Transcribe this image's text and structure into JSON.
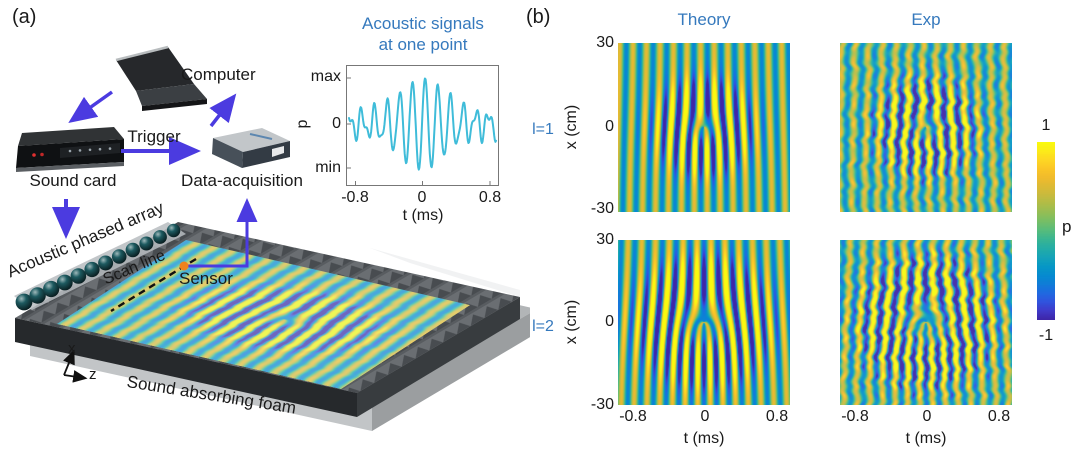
{
  "figure": {
    "panel_a_tag": "(a)",
    "panel_b_tag": "(b)"
  },
  "colors": {
    "accent_blue_text": "#3579bd",
    "arrow_purple": "#4b3be0",
    "waveform_cyan": "#3fbcd9",
    "sensor_orange": "#f0821e",
    "colormap": "parula"
  },
  "panel_a": {
    "labels": {
      "computer": "Computer",
      "trigger": "Trigger",
      "sound_card": "Sound card",
      "daq": "Data-acquisition",
      "phased_array": "Acoustic phased array",
      "scan_line": "Scan line",
      "sensor": "Sensor",
      "foam": "Sound absorbing foam",
      "axis_x": "x",
      "axis_z": "z"
    },
    "inset": {
      "title_line1": "Acoustic signals",
      "title_line2": "at one point",
      "ylabel": "p",
      "yticks": [
        "max",
        "0",
        "min"
      ],
      "xticks": [
        "-0.8",
        "0",
        "0.8"
      ],
      "xlabel": "t (ms)"
    }
  },
  "panel_b": {
    "col_titles": [
      "Theory",
      "Exp"
    ],
    "row_labels": [
      "l=1",
      "l=2"
    ],
    "ylabel": "x (cm)",
    "yticks": [
      "30",
      "0",
      "-30"
    ],
    "xticks": [
      "-0.8",
      "0",
      "0.8"
    ],
    "xlabel": "t (ms)",
    "colorbar": {
      "tick_top": "1",
      "tick_bottom": "-1",
      "label": "p"
    }
  },
  "chart_data": [
    {
      "id": "acoustic-signal-waveform",
      "type": "line",
      "title": "Acoustic signals at one point",
      "xlabel": "t (ms)",
      "ylabel": "p",
      "x_range_ms": [
        -0.9,
        0.9
      ],
      "xtick_values": [
        -0.8,
        0,
        0.8
      ],
      "ytick_labels": [
        "max",
        "0",
        "min"
      ],
      "carrier_cycles_per_ms": 6.3,
      "edge_cycles_per_ms": 11.5,
      "envelope_width_ms": 0.4,
      "description": "Amplitude-modulated acoustic tone burst: weak irregular oscillations at the edges rising to a strong burst centred near t = 0, spanning min to max pressure"
    },
    {
      "id": "heatmap-theory-l1",
      "type": "heatmap",
      "row_label": "l=1",
      "col_label": "Theory",
      "l": 1,
      "mode": "theory",
      "xlabel": "t (ms)",
      "ylabel": "x (cm)",
      "x_range_ms": [
        -0.95,
        0.95
      ],
      "y_range_cm": [
        -30,
        30
      ],
      "xtick_values": [
        -0.8,
        0,
        0.8
      ],
      "ytick_values": [
        30,
        0,
        -30
      ],
      "p_range": [
        -1,
        1
      ],
      "colormap": "parula",
      "fringes_across": 13,
      "noise": 0,
      "seed": 1,
      "wash": 0,
      "description": "Simulated pressure fringes p(x,t) with an l=1 fork dislocation inside a circular high-amplitude region"
    },
    {
      "id": "heatmap-exp-l1",
      "type": "heatmap",
      "row_label": "l=1",
      "col_label": "Exp",
      "l": 1,
      "mode": "experiment",
      "xlabel": "t (ms)",
      "ylabel": "x (cm)",
      "x_range_ms": [
        -0.95,
        0.95
      ],
      "y_range_cm": [
        -30,
        30
      ],
      "xtick_values": [
        -0.8,
        0,
        0.8
      ],
      "ytick_values": [
        30,
        0,
        -30
      ],
      "p_range": [
        -1,
        1
      ],
      "colormap": "parula",
      "fringes_across": 13,
      "noise": 1,
      "seed": 2,
      "wash": 0.06,
      "description": "Measured fringes, wavy and noisy along x, reproducing the l=1 fork dislocation"
    },
    {
      "id": "heatmap-theory-l2",
      "type": "heatmap",
      "row_label": "l=2",
      "col_label": "Theory",
      "l": 2,
      "mode": "theory",
      "xlabel": "t (ms)",
      "ylabel": "x (cm)",
      "x_range_ms": [
        -0.95,
        0.95
      ],
      "y_range_cm": [
        -30,
        30
      ],
      "xtick_values": [
        -0.8,
        0,
        0.8
      ],
      "ytick_values": [
        30,
        0,
        -30
      ],
      "p_range": [
        -1,
        1
      ],
      "colormap": "parula",
      "fringes_across": 13,
      "noise": 0,
      "seed": 3,
      "wash": 0,
      "description": "Simulated pressure fringes with an l=2 fork dislocation and wider central vortex region"
    },
    {
      "id": "heatmap-exp-l2",
      "type": "heatmap",
      "row_label": "l=2",
      "col_label": "Exp",
      "l": 2,
      "mode": "experiment",
      "xlabel": "t (ms)",
      "ylabel": "x (cm)",
      "x_range_ms": [
        -0.95,
        0.95
      ],
      "y_range_cm": [
        -30,
        30
      ],
      "xtick_values": [
        -0.8,
        0,
        0.8
      ],
      "ytick_values": [
        30,
        0,
        -30
      ],
      "p_range": [
        -1,
        1
      ],
      "colormap": "parula",
      "fringes_across": 13,
      "noise": 1,
      "seed": 4,
      "wash": 0.06,
      "description": "Measured fringes, wavy and noisy along x, reproducing the l=2 fork dislocation"
    },
    {
      "id": "foam-scanned-wavefield",
      "type": "heatmap",
      "l": 1,
      "mode": "illustration",
      "p_range": [
        -1,
        1
      ],
      "colormap": "parula",
      "fringes_across": 16,
      "noise": 0.35,
      "seed": 5,
      "wash": 0.32,
      "cx": 0.15,
      "description": "Acoustic vortex interference pattern scanned over the sound absorbing foam platform"
    }
  ]
}
